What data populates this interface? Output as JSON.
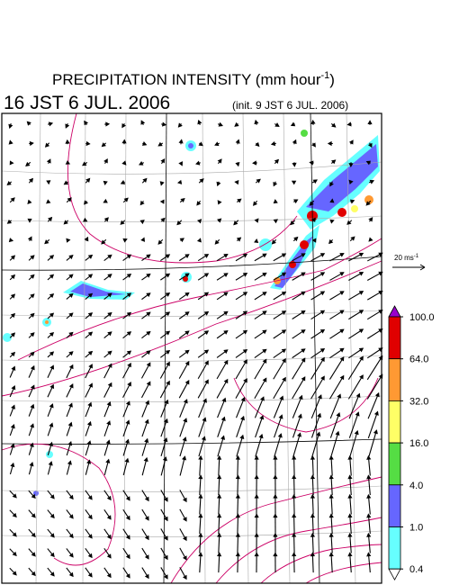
{
  "header": {
    "title": {
      "text": "PRECIPITATION INTENSITY (mm hour",
      "superscript": "-1",
      "suffix": ")"
    },
    "valid_time": "16 JST 6 JUL. 2006",
    "init_time": "(init. 9 JST 6 JUL. 2006)"
  },
  "vector_legend": {
    "text": "20 ms",
    "superscript": "-1"
  },
  "colorbar": {
    "levels": [
      {
        "value": 100,
        "label": "100.0"
      },
      {
        "value": 64,
        "label": "64.0"
      },
      {
        "value": 32,
        "label": "32.0"
      },
      {
        "value": 16,
        "label": "16.0"
      },
      {
        "value": 4,
        "label": "4.0"
      },
      {
        "value": 1,
        "label": "1.0"
      },
      {
        "value": 0.4,
        "label": "0.4"
      }
    ],
    "colors": [
      "#e00000",
      "#ff9933",
      "#ffff66",
      "#55dd44",
      "#6666ff",
      "#66ffff"
    ],
    "over_color": "#9900cc",
    "under_color": "#ffffff"
  }
}
